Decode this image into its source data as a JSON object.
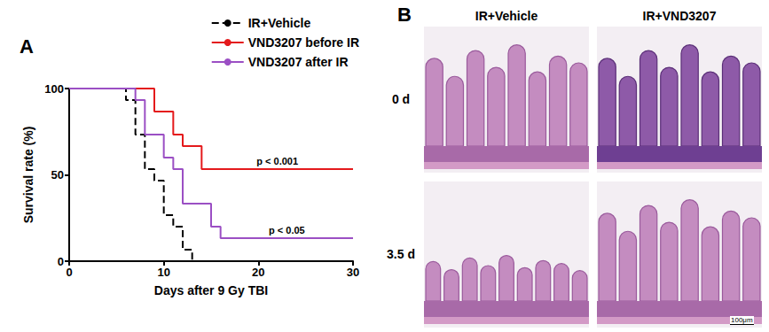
{
  "chart_data": {
    "type": "line",
    "panel": "A",
    "x_label": "Days after 9 Gy TBI",
    "y_label": "Survival rate (%)",
    "xlim": [
      0,
      30
    ],
    "xticks": [
      0,
      10,
      20,
      30
    ],
    "ylim": [
      0,
      100
    ],
    "yticks": [
      0,
      50,
      100
    ],
    "grid": false,
    "legend": "upper right",
    "series": [
      {
        "name": "IR+Vehicle",
        "color": "#000000",
        "line_style": "dashed",
        "x": [
          0,
          6,
          7,
          8,
          9,
          10,
          11,
          12,
          13
        ],
        "values": [
          100,
          93.3,
          73.3,
          53.3,
          46.7,
          26.7,
          20,
          6.7,
          0
        ]
      },
      {
        "name": "VND3207 before IR",
        "color": "#e41a1c",
        "line_style": "solid",
        "x": [
          0,
          9,
          11,
          12,
          14,
          30
        ],
        "values": [
          100,
          86.7,
          73.3,
          66.7,
          53.3,
          53.3
        ],
        "annotation": "p < 0.001"
      },
      {
        "name": "VND3207 after IR",
        "color": "#9b4fc4",
        "line_style": "solid",
        "x": [
          0,
          7,
          8,
          10,
          11,
          12,
          15,
          16,
          30
        ],
        "values": [
          100,
          93.3,
          73.3,
          60,
          53.3,
          33.3,
          20,
          13.3,
          13.3
        ],
        "annotation": "p < 0.05"
      }
    ]
  },
  "histology": {
    "panel": "B",
    "columns": [
      "IR+Vehicle",
      "IR+VND3207"
    ],
    "rows": [
      "0 d",
      "3.5 d"
    ],
    "scale_bar": "100μm"
  }
}
